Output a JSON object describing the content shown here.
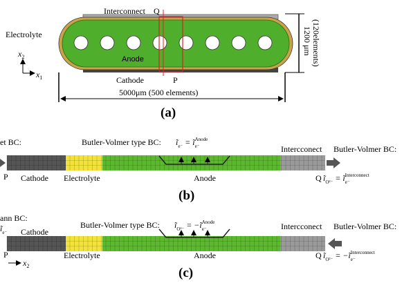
{
  "panel_a": {
    "interconnect": "Interconnect",
    "q": "Q",
    "electrolyte": "Electrolyte",
    "anode": "Anode",
    "cathode": "Cathode",
    "p": "P",
    "height": "1200 μm",
    "height_elements": "(120elements)",
    "width": "5000μm (500 elements)",
    "axis_x2": {
      "base": "x",
      "sub": "2"
    },
    "axis_x1": {
      "base": "x",
      "sub": "1"
    },
    "label": "(a)"
  },
  "panel_b": {
    "left_bc": "et BC:",
    "mid_bc": "Butler-Volmer type BC:",
    "mid_eq": [
      "ĩ",
      {
        "sub": "e⁻"
      },
      " = ",
      "ĩ",
      {
        "sub": "e⁻",
        "sup": "Anode"
      }
    ],
    "interconnect": "Intercconect",
    "right_bc": "Butler-Volmer BC:",
    "p": "P",
    "cathode": "Cathode",
    "electrolyte": "Electrolyte",
    "anode": "Anode",
    "q": "Q",
    "right_eq": [
      "ĩ",
      {
        "sub": "O²⁻"
      },
      " = ",
      "ĩ",
      {
        "sub": "e⁻",
        "sup": "Interconnect"
      }
    ],
    "label": "(b)"
  },
  "panel_c": {
    "left_bc": "ann BC:",
    "left_eq": [
      "ĩ",
      {
        "sub": "e⁻"
      }
    ],
    "cathode": "Cathode",
    "mid_bc": "Butler-Volmer type BC:",
    "mid_eq": [
      "ĩ",
      {
        "sub": "O²⁻"
      },
      " = −",
      "ĩ",
      {
        "sub": "e⁻",
        "sup": "Anode"
      }
    ],
    "interconnect": "Intercconect",
    "right_bc": "Butler-Volmer BC:",
    "p": "P",
    "axis_x2": {
      "base": "x",
      "sub": "2"
    },
    "electrolyte": "Electrolyte",
    "anode": "Anode",
    "q": "Q",
    "right_eq": [
      "ĩ",
      {
        "sub": "O²⁻"
      },
      " = −",
      "ĩ",
      {
        "sub": "e⁻",
        "sup": "Interconnect"
      }
    ],
    "label": "(c)"
  }
}
